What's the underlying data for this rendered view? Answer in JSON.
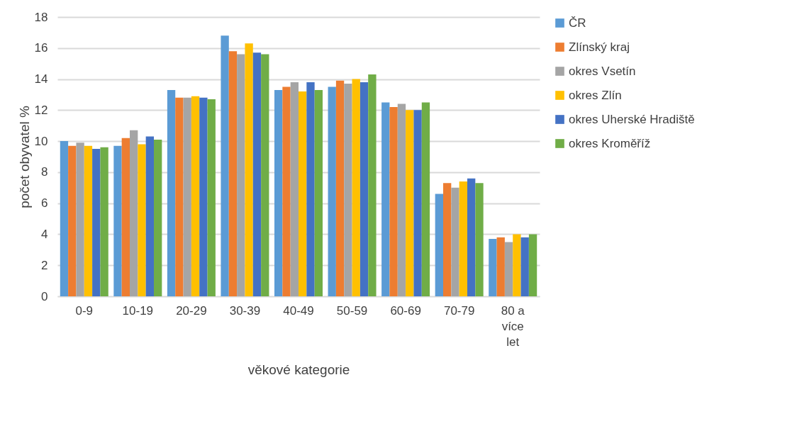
{
  "chart_data": {
    "type": "bar",
    "xlabel": "věkové kategorie",
    "ylabel": "počet obyvatel %",
    "categories": [
      "0-9",
      "10-19",
      "20-29",
      "30-39",
      "40-49",
      "50-59",
      "60-69",
      "70-79",
      "80 a\nvíce\nlet"
    ],
    "series": [
      {
        "name": "ČR",
        "color": "#5b9bd5",
        "values": [
          10.0,
          9.7,
          13.3,
          16.8,
          13.3,
          13.5,
          12.5,
          6.6,
          3.7
        ]
      },
      {
        "name": "Zlínský kraj",
        "color": "#ed7d31",
        "values": [
          9.7,
          10.2,
          12.8,
          15.8,
          13.5,
          13.9,
          12.2,
          7.3,
          3.8
        ]
      },
      {
        "name": "okres Vsetín",
        "color": "#a5a5a5",
        "values": [
          9.9,
          10.7,
          12.8,
          15.6,
          13.8,
          13.7,
          12.4,
          7.0,
          3.5
        ]
      },
      {
        "name": "okres Zlín",
        "color": "#ffc000",
        "values": [
          9.7,
          9.8,
          12.9,
          16.3,
          13.2,
          14.0,
          12.0,
          7.4,
          4.0
        ]
      },
      {
        "name": "okres Uherské Hradiště",
        "color": "#4472c4",
        "values": [
          9.5,
          10.3,
          12.8,
          15.7,
          13.8,
          13.8,
          12.0,
          7.6,
          3.8
        ]
      },
      {
        "name": "okres Kroměříž",
        "color": "#70ad47",
        "values": [
          9.6,
          10.1,
          12.7,
          15.6,
          13.3,
          14.3,
          12.5,
          7.3,
          4.0
        ]
      }
    ],
    "ylim": [
      0,
      18
    ],
    "yticks": [
      0,
      2,
      4,
      6,
      8,
      10,
      12,
      14,
      16,
      18
    ],
    "grid": "y",
    "legend": "right"
  }
}
